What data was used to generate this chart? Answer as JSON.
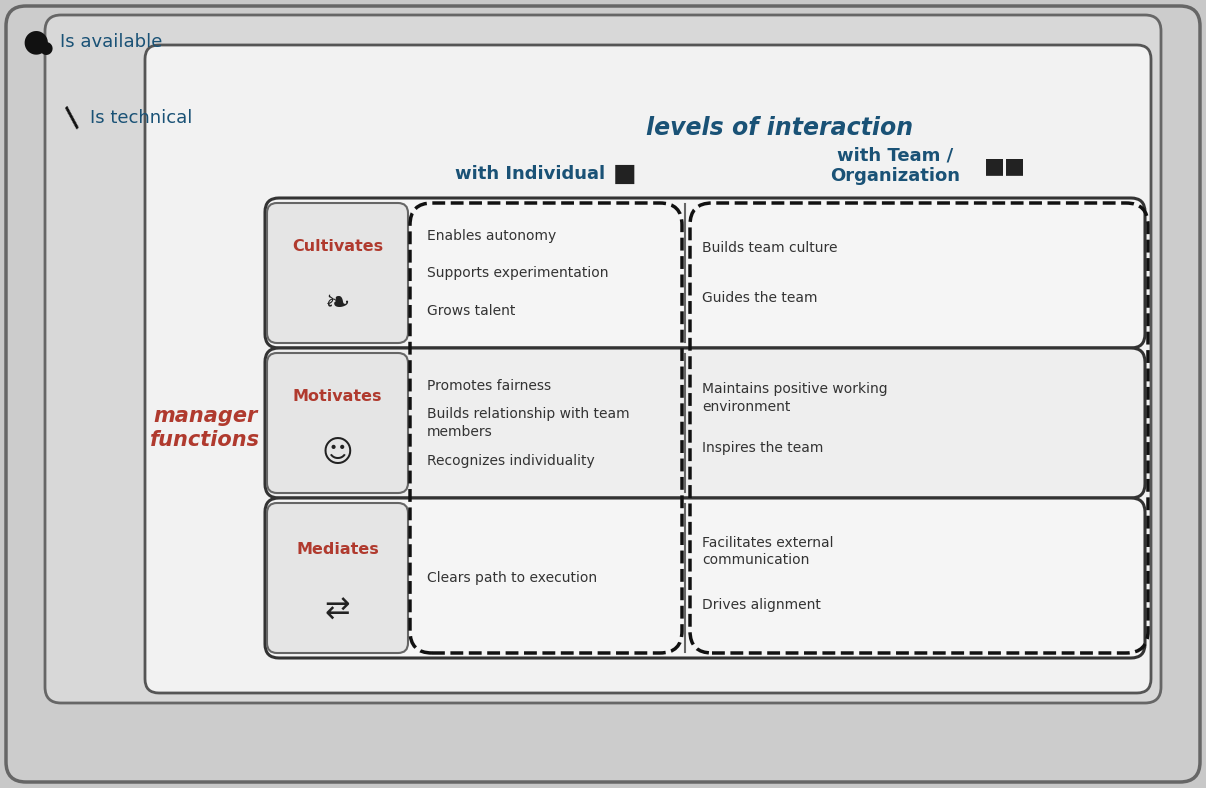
{
  "title_interaction": "levels of interaction",
  "col1_header": "with Individual",
  "col2_header": "with Team /\nOrganization",
  "row_labels": [
    "Cultivates",
    "Motivates",
    "Mediates"
  ],
  "label_left": "manager\nfunctions",
  "top_label1": "Is available",
  "top_label2": "Is technical",
  "cell_content": {
    "r0c0": [
      "Enables autonomy",
      "Supports experimentation",
      "Grows talent"
    ],
    "r0c1": [
      "Builds team culture",
      "Guides the team"
    ],
    "r1c0": [
      "Promotes fairness",
      "Builds relationship with team\nmembers",
      "Recognizes individuality"
    ],
    "r1c1": [
      "Maintains positive working\nenvironment",
      "Inspires the team"
    ],
    "r2c0": [
      "Clears path to execution"
    ],
    "r2c1": [
      "Facilitates external\ncommunication",
      "Drives alignment"
    ]
  },
  "color_orange": "#b03a2e",
  "color_blue": "#1a5276",
  "color_darkgray": "#333333",
  "color_bg_outer": "#c8c8c8",
  "color_bg_mid": "#d5d5d5",
  "color_bg_inner": "#f0f0f0",
  "color_row_bg": "#f2f2f2",
  "color_label_bg": "#e0e0e0",
  "color_text": "#333333"
}
